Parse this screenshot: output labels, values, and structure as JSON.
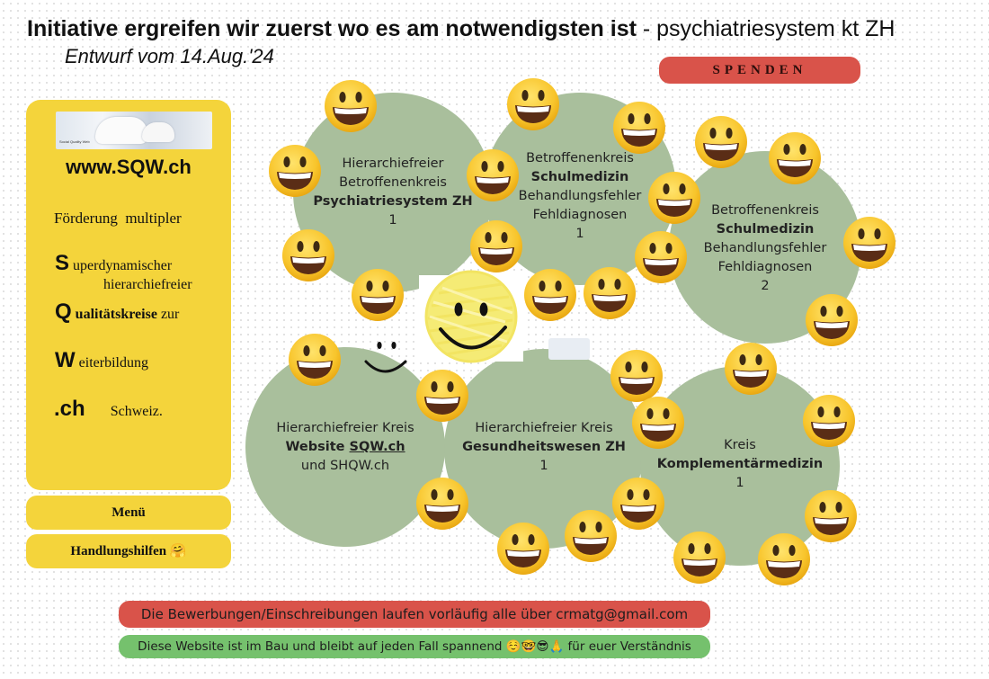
{
  "header": {
    "title_bold": "Initiative ergreifen wir zuerst wo es am notwendigsten ist",
    "title_sep": " - ",
    "title_rest": "psychiatriesystem kt ZH",
    "draft": "Entwurf vom 14.Aug.'24"
  },
  "donate_label": "SPENDEN",
  "sidebar": {
    "image_caption": "Social Quality Web",
    "site": "www.SQW.ch",
    "promo": "Förderung  multipler",
    "s_letter": "S",
    "s_text": "uperdynamischer",
    "s_text2": "hierarchiefreier",
    "q_letter": "Q",
    "q_bold": "ualitätskreise",
    "q_rest": " zur",
    "w_letter": "W",
    "w_text": "eiterbildung",
    "ch_letter": ".ch",
    "ch_text": "Schweiz.",
    "menu": "Menü",
    "help": "Handlungshilfen 🤗"
  },
  "circles": {
    "c1": {
      "l1": "Hierarchiefreier",
      "l2": "Betroffenenkreis",
      "l3": "Psychiatriesystem ZH",
      "l4": "1"
    },
    "c2": {
      "l1": "Betroffenenkreis",
      "l2": "Schulmedizin",
      "l3": "Behandlungsfehler",
      "l4": "Fehldiagnosen",
      "l5": "1"
    },
    "c3": {
      "l1": "Betroffenenkreis",
      "l2": "Schulmedizin",
      "l3": "Behandlungsfehler",
      "l4": "Fehldiagnosen",
      "l5": "2"
    },
    "c4": {
      "l1": "Hierarchiefreier Kreis",
      "l2a": "Website ",
      "l2b": "SQW.ch",
      "l3": "und SHQW.ch"
    },
    "c5": {
      "l1": "Hierarchiefreier Kreis",
      "l2": "Gesundheitswesen ZH",
      "l3": "1"
    },
    "c6": {
      "l1": "Kreis",
      "l2": "Komplementärmedizin",
      "l3": "1"
    }
  },
  "notices": {
    "red": "Die Bewerbungen/Einschreibungen laufen vorläufig alle über crmatg@gmail.com",
    "green": "Diese Website ist im Bau und bleibt auf jeden Fall spannend ☺️🤓😎🙏 für euer Verständnis"
  },
  "colors": {
    "accent_yellow": "#f4d43b",
    "donate_red": "#d9534a",
    "notice_green": "#75c16d",
    "circle_green": "#a9bf9c"
  },
  "icons": [
    "grinning-face-emoji",
    "smiley-icon",
    "polar-bear-image"
  ]
}
